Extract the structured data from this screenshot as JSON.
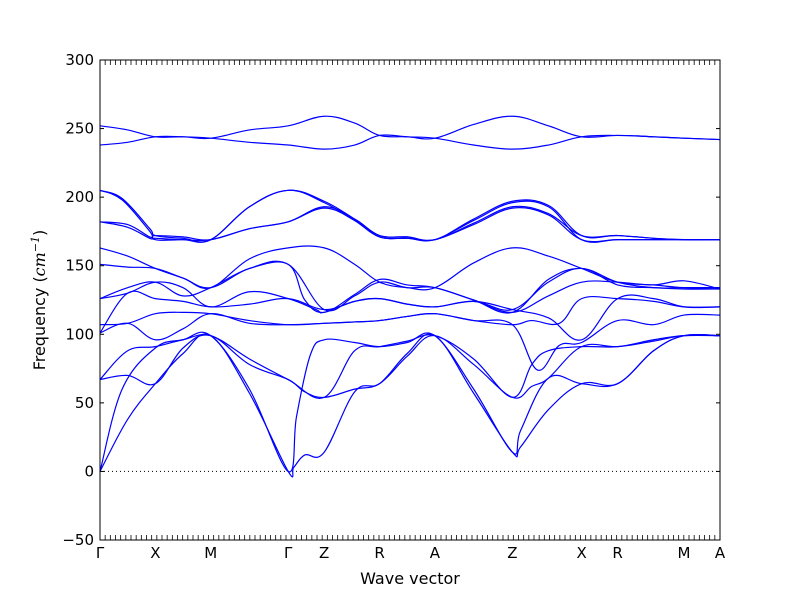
{
  "chart_data": {
    "type": "line",
    "title": "",
    "xlabel": "Wave vector",
    "ylabel_prefix": "Frequency (",
    "ylabel_unit": "cm",
    "ylabel_exponent": "−1",
    "ylabel_suffix": ")",
    "ylim": [
      -50,
      300
    ],
    "yticks": [
      -50,
      0,
      50,
      100,
      150,
      200,
      250,
      300
    ],
    "ytick_labels": [
      "−50",
      "0",
      "50",
      "100",
      "150",
      "200",
      "250",
      "300"
    ],
    "xlim": [
      0,
      11.2
    ],
    "high_symmetry_points": [
      {
        "label": "Γ",
        "x": 0
      },
      {
        "label": "X",
        "x": 1
      },
      {
        "label": "M",
        "x": 2
      },
      {
        "label": "Γ",
        "x": 3.4
      },
      {
        "label": "Z",
        "x": 4.05
      },
      {
        "label": "R",
        "x": 5.05
      },
      {
        "label": "A",
        "x": 6.05
      },
      {
        "label": "Z",
        "x": 7.45
      },
      {
        "label": "X",
        "x": 8.7
      },
      {
        "label": "R",
        "x": 9.35
      },
      {
        "label": "M",
        "x": 10.55
      },
      {
        "label": "A",
        "x": 11.2
      }
    ],
    "zero_line": true,
    "line_color": "#0000ff",
    "series": [
      {
        "x": [
          0,
          0.5,
          1,
          1.5,
          2,
          2.7,
          3.4,
          3.5,
          3.7,
          4.05,
          4.6,
          5.05,
          5.55,
          6.05,
          6.75,
          7.45,
          7.6,
          8.1,
          8.7,
          9.35,
          10.0,
          10.55,
          11.2
        ],
        "values": [
          0,
          38,
          64,
          86,
          99,
          57,
          0,
          3,
          12,
          14,
          58,
          64,
          86,
          99,
          57,
          14,
          18,
          45,
          64,
          64,
          88,
          99,
          99
        ]
      },
      {
        "x": [
          0,
          0.4,
          1,
          1.5,
          2,
          2.7,
          3.4,
          3.55,
          3.8,
          4.05,
          4.6,
          5.05,
          5.55,
          6.05,
          6.75,
          7.45,
          7.6,
          8.1,
          8.7,
          9.35,
          10.0,
          10.55,
          11.2
        ],
        "values": [
          0,
          60,
          90,
          96,
          99,
          60,
          0,
          40,
          85,
          96,
          94,
          91,
          94,
          99,
          60,
          14,
          30,
          68,
          64,
          64,
          88,
          99,
          99
        ]
      },
      {
        "x": [
          0,
          0.5,
          1,
          1.5,
          2,
          2.7,
          3.4,
          3.7,
          4.05,
          4.6,
          5.05,
          5.55,
          6.05,
          6.75,
          7.45,
          7.8,
          8.1,
          8.7,
          9.35,
          10.0,
          10.55,
          11.2
        ],
        "values": [
          67,
          70,
          64,
          90,
          99,
          78,
          67,
          58,
          54,
          60,
          64,
          84,
          99,
          78,
          54,
          62,
          68,
          91,
          91,
          95,
          99,
          99
        ]
      },
      {
        "x": [
          0,
          0.5,
          1,
          1.5,
          2,
          2.7,
          3.4,
          4.05,
          4.6,
          5.05,
          5.55,
          6.05,
          6.75,
          7.45,
          7.8,
          8.1,
          8.7,
          9.35,
          10.0,
          10.55,
          11.2
        ],
        "values": [
          67,
          88,
          91,
          96,
          99,
          82,
          67,
          54,
          88,
          91,
          95,
          99,
          82,
          54,
          78,
          88,
          91,
          91,
          96,
          99,
          99
        ]
      },
      {
        "x": [
          0,
          0.5,
          1,
          1.5,
          2,
          2.7,
          3.4,
          4.05,
          4.6,
          5.05,
          5.55,
          6.05,
          6.75,
          7.45,
          7.9,
          8.3,
          8.7,
          9.35,
          10.0,
          10.55,
          11.2
        ],
        "values": [
          101,
          108,
          96,
          104,
          115,
          108,
          107,
          108,
          109,
          110,
          113,
          115,
          110,
          107,
          74,
          92,
          94,
          110,
          107,
          114,
          114
        ]
      },
      {
        "x": [
          0,
          0.5,
          1,
          1.5,
          2,
          2.7,
          3.4,
          4.05,
          4.6,
          5.05,
          5.55,
          6.05,
          6.75,
          7.45,
          7.8,
          8.3,
          8.7,
          9.35,
          10.0,
          10.55,
          11.2
        ],
        "values": [
          107,
          108,
          115,
          116,
          115,
          110,
          107,
          108,
          109,
          110,
          113,
          115,
          110,
          107,
          110,
          108,
          126,
          126,
          124,
          120,
          120
        ]
      },
      {
        "x": [
          0,
          0.5,
          1,
          1.5,
          2,
          2.7,
          3.4,
          4.05,
          4.6,
          5.05,
          5.55,
          6.05,
          6.75,
          7.45,
          8.1,
          8.7,
          9.35,
          10.0,
          10.55,
          11.2
        ],
        "values": [
          101,
          130,
          126,
          124,
          120,
          122,
          126,
          118,
          124,
          126,
          122,
          120,
          124,
          118,
          112,
          96,
          126,
          126,
          120,
          120
        ]
      },
      {
        "x": [
          0,
          0.5,
          1,
          1.5,
          2,
          2.7,
          3.4,
          3.9,
          4.05,
          4.6,
          5.05,
          5.55,
          6.05,
          6.75,
          7.45,
          8.1,
          8.7,
          9.35,
          10.0,
          10.55,
          11.2
        ],
        "values": [
          126,
          130,
          138,
          134,
          120,
          131,
          126,
          118,
          116,
          124,
          126,
          122,
          120,
          124,
          118,
          138,
          148,
          136,
          134,
          133,
          133
        ]
      },
      {
        "x": [
          0,
          0.5,
          1,
          1.5,
          2,
          2.7,
          3.4,
          4.05,
          4.6,
          5.05,
          5.55,
          6.05,
          6.75,
          7.45,
          8.1,
          8.7,
          9.35,
          10.0,
          10.55,
          11.2
        ],
        "values": [
          126,
          134,
          138,
          128,
          134,
          148,
          151,
          118,
          128,
          138,
          134,
          134,
          125,
          116,
          128,
          138,
          138,
          136,
          139,
          133
        ]
      },
      {
        "x": [
          0,
          0.5,
          1,
          1.5,
          2,
          2.7,
          3.4,
          3.7,
          4.05,
          4.6,
          5.05,
          5.55,
          6.05,
          6.75,
          7.45,
          8.1,
          8.7,
          9.35,
          10.0,
          10.55,
          11.2
        ],
        "values": [
          151,
          149,
          148,
          141,
          134,
          148,
          151,
          125,
          116,
          129,
          140,
          136,
          134,
          125,
          116,
          140,
          148,
          138,
          134,
          134,
          134
        ]
      },
      {
        "x": [
          0,
          0.5,
          1,
          1.5,
          2,
          2.7,
          3.4,
          4.05,
          4.6,
          5.05,
          5.55,
          6.05,
          6.75,
          7.45,
          8.1,
          8.7,
          9.35,
          10.0,
          10.55,
          11.2
        ],
        "values": [
          163,
          157,
          148,
          141,
          134,
          155,
          163,
          163,
          151,
          138,
          134,
          134,
          152,
          163,
          157,
          148,
          138,
          136,
          134,
          134
        ]
      },
      {
        "x": [
          0,
          0.5,
          0.9,
          1,
          1.5,
          2,
          2.7,
          3.4,
          4.05,
          4.6,
          5.05,
          5.55,
          6.05,
          6.75,
          7.45,
          8.1,
          8.7,
          9.35,
          10.0,
          10.55,
          11.2
        ],
        "values": [
          182,
          178,
          170,
          170,
          169,
          169,
          177,
          182,
          192,
          183,
          171,
          170,
          169,
          180,
          192,
          187,
          169,
          169,
          169,
          169,
          169
        ]
      },
      {
        "x": [
          0,
          0.5,
          0.9,
          1,
          1.5,
          2,
          2.7,
          3.4,
          4.05,
          4.6,
          5.05,
          5.55,
          6.05,
          6.75,
          7.45,
          8.1,
          8.7,
          9.35,
          10.0,
          10.55,
          11.2
        ],
        "values": [
          182,
          180,
          171,
          172,
          171,
          169,
          177,
          182,
          193,
          184,
          172,
          171,
          169,
          181,
          193,
          188,
          172,
          172,
          170,
          169,
          169
        ]
      },
      {
        "x": [
          0,
          0.4,
          0.9,
          1,
          1.5,
          2,
          2.7,
          3.4,
          4.05,
          4.6,
          5.05,
          5.55,
          6.05,
          6.75,
          7.45,
          8.1,
          8.7,
          9.35,
          10.0,
          10.55,
          11.2
        ],
        "values": [
          205,
          198,
          175,
          169,
          169,
          169,
          193,
          205,
          196,
          183,
          171,
          170,
          169,
          183,
          196,
          193,
          169,
          169,
          169,
          169,
          169
        ]
      },
      {
        "x": [
          0,
          0.4,
          0.9,
          1,
          1.5,
          2,
          2.7,
          3.4,
          4.05,
          4.6,
          5.05,
          5.55,
          6.05,
          6.75,
          7.45,
          8.1,
          8.7,
          9.35,
          10.0,
          10.55,
          11.2
        ],
        "values": [
          205,
          199,
          177,
          172,
          170,
          169,
          193,
          205,
          197,
          184,
          172,
          171,
          169,
          184,
          197,
          194,
          172,
          172,
          170,
          169,
          169
        ]
      },
      {
        "x": [
          0,
          0.5,
          1,
          1.5,
          2,
          2.7,
          3.4,
          4.05,
          4.6,
          5.05,
          5.55,
          6.05,
          6.75,
          7.45,
          8.1,
          8.7,
          9.35,
          10.0,
          10.55,
          11.2
        ],
        "values": [
          238,
          240,
          244,
          244,
          243,
          240,
          238,
          235,
          238,
          245,
          244,
          243,
          238,
          235,
          238,
          244,
          245,
          244,
          243,
          242
        ]
      },
      {
        "x": [
          0,
          0.5,
          1,
          1.5,
          2,
          2.7,
          3.4,
          4.05,
          4.6,
          5.05,
          5.55,
          6.05,
          6.75,
          7.45,
          8.1,
          8.7,
          9.35,
          10.0,
          10.55,
          11.2
        ],
        "values": [
          252,
          249,
          244,
          244,
          243,
          249,
          252,
          259,
          254,
          245,
          244,
          243,
          253,
          259,
          252,
          244,
          245,
          244,
          243,
          242
        ]
      }
    ]
  }
}
